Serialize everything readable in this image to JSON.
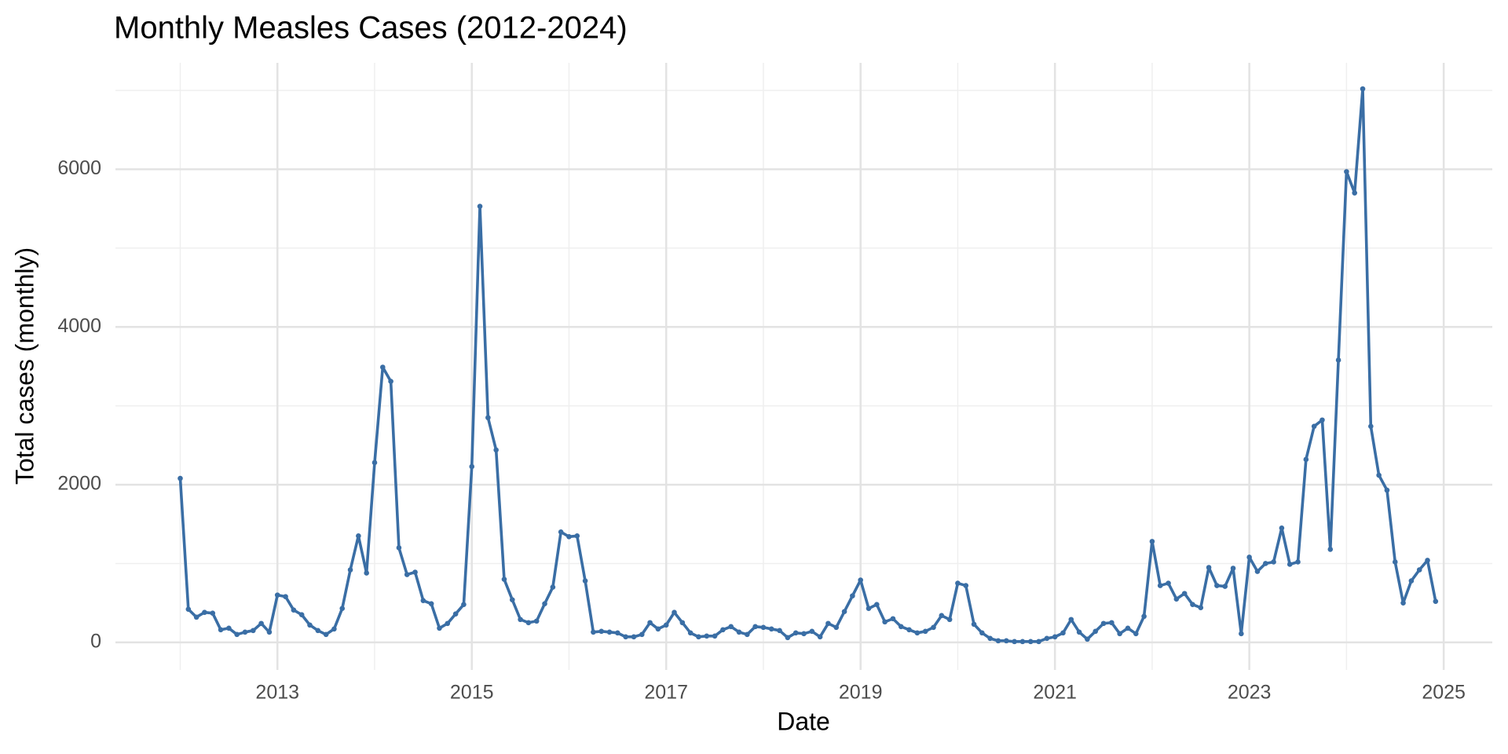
{
  "chart_data": {
    "type": "line",
    "title": "Monthly Measles Cases (2012-2024)",
    "x_label": "Date",
    "y_label": "Total cases (monthly)",
    "x": [
      "2012-01",
      "2012-02",
      "2012-03",
      "2012-04",
      "2012-05",
      "2012-06",
      "2012-07",
      "2012-08",
      "2012-09",
      "2012-10",
      "2012-11",
      "2012-12",
      "2013-01",
      "2013-02",
      "2013-03",
      "2013-04",
      "2013-05",
      "2013-06",
      "2013-07",
      "2013-08",
      "2013-09",
      "2013-10",
      "2013-11",
      "2013-12",
      "2014-01",
      "2014-02",
      "2014-03",
      "2014-04",
      "2014-05",
      "2014-06",
      "2014-07",
      "2014-08",
      "2014-09",
      "2014-10",
      "2014-11",
      "2014-12",
      "2015-01",
      "2015-02",
      "2015-03",
      "2015-04",
      "2015-05",
      "2015-06",
      "2015-07",
      "2015-08",
      "2015-09",
      "2015-10",
      "2015-11",
      "2015-12",
      "2016-01",
      "2016-02",
      "2016-03",
      "2016-04",
      "2016-05",
      "2016-06",
      "2016-07",
      "2016-08",
      "2016-09",
      "2016-10",
      "2016-11",
      "2016-12",
      "2017-01",
      "2017-02",
      "2017-03",
      "2017-04",
      "2017-05",
      "2017-06",
      "2017-07",
      "2017-08",
      "2017-09",
      "2017-10",
      "2017-11",
      "2017-12",
      "2018-01",
      "2018-02",
      "2018-03",
      "2018-04",
      "2018-05",
      "2018-06",
      "2018-07",
      "2018-08",
      "2018-09",
      "2018-10",
      "2018-11",
      "2018-12",
      "2019-01",
      "2019-02",
      "2019-03",
      "2019-04",
      "2019-05",
      "2019-06",
      "2019-07",
      "2019-08",
      "2019-09",
      "2019-10",
      "2019-11",
      "2019-12",
      "2020-01",
      "2020-02",
      "2020-03",
      "2020-04",
      "2020-05",
      "2020-06",
      "2020-07",
      "2020-08",
      "2020-09",
      "2020-10",
      "2020-11",
      "2020-12",
      "2021-01",
      "2021-02",
      "2021-03",
      "2021-04",
      "2021-05",
      "2021-06",
      "2021-07",
      "2021-08",
      "2021-09",
      "2021-10",
      "2021-11",
      "2021-12",
      "2022-01",
      "2022-02",
      "2022-03",
      "2022-04",
      "2022-05",
      "2022-06",
      "2022-07",
      "2022-08",
      "2022-09",
      "2022-10",
      "2022-11",
      "2022-12",
      "2023-01",
      "2023-02",
      "2023-03",
      "2023-04",
      "2023-05",
      "2023-06",
      "2023-07",
      "2023-08",
      "2023-09",
      "2023-10",
      "2023-11",
      "2023-12",
      "2024-01",
      "2024-02",
      "2024-03",
      "2024-04",
      "2024-05",
      "2024-06",
      "2024-07",
      "2024-08",
      "2024-09",
      "2024-10",
      "2024-11",
      "2024-12"
    ],
    "series": [
      {
        "name": "Total cases",
        "color": "#3a6ea5",
        "values": [
          2080,
          420,
          320,
          380,
          370,
          160,
          180,
          100,
          130,
          150,
          240,
          130,
          600,
          580,
          410,
          350,
          220,
          150,
          100,
          170,
          430,
          920,
          1350,
          880,
          2280,
          3490,
          3310,
          1200,
          860,
          890,
          530,
          490,
          180,
          240,
          360,
          480,
          2230,
          5530,
          2850,
          2440,
          800,
          540,
          290,
          250,
          270,
          490,
          700,
          1400,
          1340,
          1350,
          780,
          130,
          140,
          130,
          120,
          70,
          70,
          100,
          250,
          170,
          220,
          380,
          250,
          120,
          70,
          80,
          80,
          160,
          200,
          130,
          100,
          200,
          190,
          170,
          150,
          60,
          120,
          110,
          140,
          70,
          240,
          190,
          390,
          590,
          790,
          430,
          480,
          260,
          300,
          200,
          160,
          120,
          140,
          190,
          340,
          290,
          750,
          720,
          230,
          120,
          50,
          20,
          20,
          10,
          10,
          10,
          10,
          50,
          70,
          120,
          290,
          130,
          40,
          140,
          240,
          250,
          110,
          180,
          110,
          330,
          1280,
          720,
          750,
          550,
          620,
          480,
          440,
          950,
          720,
          710,
          940,
          110,
          1080,
          900,
          1000,
          1020,
          1450,
          990,
          1020,
          2320,
          2740,
          2820,
          1180,
          3580,
          5970,
          5700,
          7020,
          2740,
          2120,
          1930,
          1020,
          500,
          780,
          920,
          1040,
          520
        ]
      }
    ],
    "xlim": [
      "2011-05",
      "2025-07"
    ],
    "xticks": [
      {
        "value": "2013-01",
        "label": "2013"
      },
      {
        "value": "2015-01",
        "label": "2015"
      },
      {
        "value": "2017-01",
        "label": "2017"
      },
      {
        "value": "2019-01",
        "label": "2019"
      },
      {
        "value": "2021-01",
        "label": "2021"
      },
      {
        "value": "2023-01",
        "label": "2023"
      },
      {
        "value": "2025-01",
        "label": "2025"
      }
    ],
    "xminor": [
      "2012-01",
      "2014-01",
      "2016-01",
      "2018-01",
      "2020-01",
      "2022-01",
      "2024-01"
    ],
    "ylim": [
      -350,
      7350
    ],
    "yticks": [
      0,
      2000,
      4000,
      6000
    ],
    "yminor": [
      1000,
      3000,
      5000,
      7000
    ],
    "grid": true
  }
}
